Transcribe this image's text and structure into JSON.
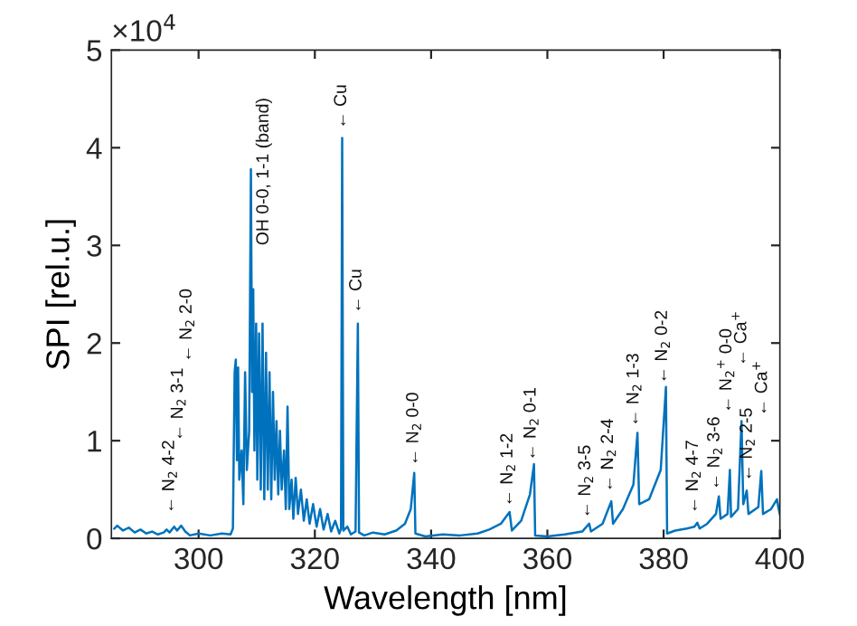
{
  "chart_data": {
    "type": "line",
    "xlabel": "Wavelength [nm]",
    "ylabel": "SPI [rel.u.]",
    "xlim": [
      285,
      400
    ],
    "xticks": [
      300,
      320,
      340,
      360,
      380,
      400
    ],
    "ylim": [
      0,
      5
    ],
    "yticks": [
      0,
      1,
      2,
      3,
      4,
      5
    ],
    "grid": false,
    "marker": "none",
    "line_style": "solid",
    "series": [
      {
        "color": "#0072bd",
        "x": [
          285.5,
          286,
          287,
          288,
          289,
          290,
          291,
          292,
          293,
          294,
          294.5,
          295,
          295.8,
          296.3,
          297,
          297.7,
          298.5,
          300,
          302,
          304,
          305.5,
          305.9,
          306.2,
          306.4,
          306.6,
          306.8,
          307.0,
          307.4,
          307.7,
          308.0,
          308.3,
          308.7,
          309.0,
          309.2,
          309.4,
          309.6,
          309.9,
          310.1,
          310.4,
          310.7,
          311.0,
          311.3,
          311.6,
          311.9,
          312.2,
          312.5,
          312.8,
          313.1,
          313.4,
          313.7,
          314.0,
          314.3,
          314.7,
          315.0,
          315.3,
          315.6,
          316.0,
          316.3,
          316.7,
          317.1,
          317.6,
          318.1,
          318.6,
          319.1,
          319.7,
          320.3,
          320.9,
          321.5,
          322.2,
          322.8,
          323.5,
          324.2,
          324.5,
          324.7,
          324.9,
          325.6,
          326.2,
          327.0,
          327.4,
          327.6,
          328.5,
          330,
          332,
          334,
          335.5,
          336.5,
          337.1,
          337.3,
          339,
          342,
          345,
          348,
          350,
          352,
          353.5,
          353.9,
          355.5,
          357,
          357.7,
          357.9,
          360,
          363,
          366,
          367.2,
          367.5,
          369.5,
          371.0,
          371.3,
          373,
          374.8,
          375.5,
          375.8,
          377.5,
          379.5,
          380.4,
          380.6,
          382,
          384,
          385.3,
          385.8,
          386.2,
          387.5,
          389,
          389.5,
          389.8,
          391,
          391.4,
          391.6,
          392.8,
          393.4,
          393.7,
          394.3,
          394.6,
          396.3,
          396.8,
          397.1,
          398.5,
          399.5,
          399.8,
          400
        ],
        "values": [
          0.1,
          0.13,
          0.08,
          0.11,
          0.06,
          0.09,
          0.05,
          0.07,
          0.04,
          0.06,
          0.09,
          0.06,
          0.12,
          0.08,
          0.13,
          0.07,
          0.03,
          0.05,
          0.03,
          0.05,
          0.04,
          0.1,
          1.7,
          1.83,
          0.8,
          1.75,
          0.6,
          0.9,
          0.35,
          1.7,
          0.7,
          1.1,
          3.78,
          1.5,
          2.55,
          0.9,
          2.2,
          0.6,
          2.1,
          0.5,
          2.2,
          0.4,
          1.9,
          0.5,
          1.7,
          0.4,
          1.5,
          0.6,
          1.2,
          0.45,
          1.1,
          0.5,
          0.9,
          0.3,
          1.35,
          0.3,
          0.6,
          0.2,
          0.62,
          0.25,
          0.5,
          0.18,
          0.4,
          0.15,
          0.35,
          0.12,
          0.3,
          0.09,
          0.25,
          0.07,
          0.18,
          0.05,
          0.1,
          4.1,
          0.08,
          0.12,
          0.04,
          0.07,
          2.2,
          0.06,
          0.03,
          0.06,
          0.04,
          0.08,
          0.15,
          0.3,
          0.67,
          0.05,
          0.02,
          0.04,
          0.03,
          0.05,
          0.09,
          0.15,
          0.27,
          0.08,
          0.18,
          0.45,
          0.76,
          0.03,
          0.02,
          0.04,
          0.07,
          0.15,
          0.07,
          0.15,
          0.38,
          0.15,
          0.3,
          0.55,
          1.08,
          0.35,
          0.4,
          0.7,
          1.55,
          0.05,
          0.08,
          0.1,
          0.12,
          0.16,
          0.1,
          0.15,
          0.25,
          0.43,
          0.2,
          0.25,
          0.7,
          0.22,
          0.3,
          1.2,
          0.35,
          0.49,
          0.25,
          0.32,
          0.69,
          0.25,
          0.3,
          0.4,
          0.3,
          0.25
        ]
      }
    ],
    "annotations": [
      "×10$^{4}$",
      "← N$_{2}$ 4-2",
      "← N$_{2}$ 3-1",
      "← N$_{2}$ 2-0",
      "OH 0-0, 1-1 (band)",
      {
        "text": "← Cu",
        "x": 324.6,
        "y": 4.19
      },
      {
        "text": "← Cu",
        "x": 327.2,
        "y": 2.3
      },
      {
        "text": "← N$_{2}$ 0-0",
        "x": 337,
        "y": 0.74
      },
      {
        "text": "← N$_{2}$ 1-2",
        "x": 353.2,
        "y": 0.32
      },
      {
        "text": "← N$_{2}$ 0-1",
        "x": 357.2,
        "y": 0.79
      },
      {
        "text": "← N$_{2}$ 3-5",
        "x": 366.6,
        "y": 0.2
      },
      {
        "text": "← N$_{2}$ 2-4",
        "x": 370.5,
        "y": 0.47
      },
      {
        "text": "← N$_{2}$ 1-3",
        "x": 374.9,
        "y": 1.14
      },
      {
        "text": "← N$_{2}$ 0-2",
        "x": 379.8,
        "y": 1.58
      },
      {
        "text": "← N$_{2}$ 4-7",
        "x": 385.1,
        "y": 0.25
      },
      {
        "text": "← N$_{2}$ 3-6",
        "x": 388.8,
        "y": 0.49
      },
      "← N$_{2}$$^{+}$ 0-0",
      "← Ca$^{+}$",
      {
        "text": "← N$_{2}$ 2-5",
        "x": 394.4,
        "y": 0.58
      },
      "← Ca$^{+}$"
    ]
  }
}
